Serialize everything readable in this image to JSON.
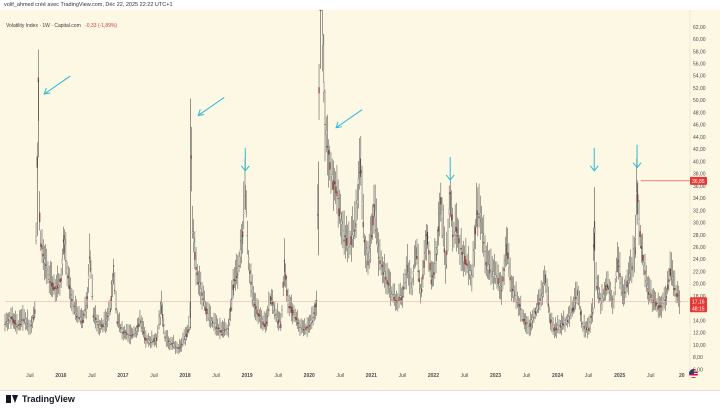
{
  "header": {
    "caption": "volif_ahmed créé avec TradingView.com, Déc 22, 2025 22:22 UTC+1"
  },
  "legend": {
    "symbol": "Volatility Index · 1W · Capital.com",
    "change": "-0,33 (-1,89%)"
  },
  "footer": {
    "brand": "TradingView"
  },
  "chart_data": {
    "type": "line",
    "y_ticks": [
      "2,00",
      "4,00",
      "6,00",
      "8,00",
      "10,00",
      "12,00",
      "14,00",
      "16,00",
      "18,00",
      "20,00",
      "22,00",
      "24,00",
      "26,00",
      "28,00",
      "30,00",
      "32,00",
      "34,00",
      "36,00",
      "38,00",
      "40,00",
      "42,00",
      "44,00",
      "46,00",
      "48,00",
      "50,00",
      "52,00",
      "54,00",
      "56,00",
      "58,00",
      "60,00",
      "62,00"
    ],
    "ylim": [
      2,
      62
    ],
    "x_ticks": [
      {
        "t": 2015.5,
        "label": "Juil"
      },
      {
        "t": 2016.0,
        "label": "2016"
      },
      {
        "t": 2016.5,
        "label": "Juil"
      },
      {
        "t": 2017.0,
        "label": "2017"
      },
      {
        "t": 2017.5,
        "label": "Juil"
      },
      {
        "t": 2018.0,
        "label": "2018"
      },
      {
        "t": 2018.5,
        "label": "Juil"
      },
      {
        "t": 2019.0,
        "label": "2019"
      },
      {
        "t": 2019.5,
        "label": "Juil"
      },
      {
        "t": 2020.0,
        "label": "2020"
      },
      {
        "t": 2020.5,
        "label": "Juil"
      },
      {
        "t": 2021.0,
        "label": "2021"
      },
      {
        "t": 2021.5,
        "label": "Juil"
      },
      {
        "t": 2022.0,
        "label": "2022"
      },
      {
        "t": 2022.5,
        "label": "Juil"
      },
      {
        "t": 2023.0,
        "label": "2023"
      },
      {
        "t": 2023.5,
        "label": "Juil"
      },
      {
        "t": 2024.0,
        "label": "2024"
      },
      {
        "t": 2024.5,
        "label": "Juil"
      },
      {
        "t": 2025.0,
        "label": "2025"
      },
      {
        "t": 2025.5,
        "label": "Juil"
      },
      {
        "t": 2026.0,
        "label": "20"
      }
    ],
    "xlim": [
      2015.1,
      2026.1
    ],
    "series": [
      {
        "values": [
          [
            2015.1,
            13.5
          ],
          [
            2015.2,
            14.5
          ],
          [
            2015.3,
            13.0
          ],
          [
            2015.4,
            14.2
          ],
          [
            2015.5,
            13.0
          ],
          [
            2015.58,
            15.0
          ],
          [
            2015.62,
            40.7
          ],
          [
            2015.64,
            53.3
          ],
          [
            2015.66,
            28.0
          ],
          [
            2015.72,
            24.0
          ],
          [
            2015.8,
            21.0
          ],
          [
            2015.9,
            19.0
          ],
          [
            2016.0,
            20.5
          ],
          [
            2016.05,
            28.0
          ],
          [
            2016.1,
            22.0
          ],
          [
            2016.18,
            17.0
          ],
          [
            2016.25,
            15.0
          ],
          [
            2016.35,
            14.0
          ],
          [
            2016.42,
            16.5
          ],
          [
            2016.47,
            25.5
          ],
          [
            2016.52,
            15.0
          ],
          [
            2016.62,
            13.0
          ],
          [
            2016.72,
            13.5
          ],
          [
            2016.8,
            16.0
          ],
          [
            2016.85,
            22.5
          ],
          [
            2016.9,
            14.0
          ],
          [
            2017.0,
            12.0
          ],
          [
            2017.1,
            11.5
          ],
          [
            2017.2,
            12.0
          ],
          [
            2017.28,
            14.0
          ],
          [
            2017.35,
            11.0
          ],
          [
            2017.45,
            10.5
          ],
          [
            2017.55,
            11.0
          ],
          [
            2017.62,
            16.5
          ],
          [
            2017.68,
            11.0
          ],
          [
            2017.8,
            10.0
          ],
          [
            2017.9,
            9.5
          ],
          [
            2018.0,
            11.0
          ],
          [
            2018.08,
            13.0
          ],
          [
            2018.09,
            50.3
          ],
          [
            2018.11,
            30.0
          ],
          [
            2018.18,
            22.0
          ],
          [
            2018.3,
            17.0
          ],
          [
            2018.4,
            14.0
          ],
          [
            2018.5,
            13.0
          ],
          [
            2018.6,
            12.0
          ],
          [
            2018.7,
            12.5
          ],
          [
            2018.78,
            20.0
          ],
          [
            2018.85,
            22.0
          ],
          [
            2018.93,
            28.0
          ],
          [
            2018.97,
            36.2
          ],
          [
            2019.02,
            24.0
          ],
          [
            2019.1,
            17.0
          ],
          [
            2019.2,
            14.5
          ],
          [
            2019.3,
            13.0
          ],
          [
            2019.38,
            18.0
          ],
          [
            2019.45,
            15.0
          ],
          [
            2019.55,
            13.0
          ],
          [
            2019.6,
            24.0
          ],
          [
            2019.65,
            17.0
          ],
          [
            2019.75,
            15.0
          ],
          [
            2019.85,
            13.0
          ],
          [
            2019.95,
            12.5
          ],
          [
            2020.05,
            14.0
          ],
          [
            2020.12,
            17.0
          ],
          [
            2020.15,
            40.0
          ],
          [
            2020.18,
            85.5
          ],
          [
            2020.21,
            63.0
          ],
          [
            2020.25,
            46.0
          ],
          [
            2020.35,
            38.0
          ],
          [
            2020.45,
            34.0
          ],
          [
            2020.55,
            28.0
          ],
          [
            2020.65,
            26.0
          ],
          [
            2020.75,
            30.0
          ],
          [
            2020.82,
            40.5
          ],
          [
            2020.88,
            27.0
          ],
          [
            2020.95,
            23.0
          ],
          [
            2021.05,
            33.0
          ],
          [
            2021.12,
            24.0
          ],
          [
            2021.2,
            22.0
          ],
          [
            2021.3,
            19.0
          ],
          [
            2021.4,
            17.0
          ],
          [
            2021.5,
            18.0
          ],
          [
            2021.58,
            23.0
          ],
          [
            2021.65,
            19.0
          ],
          [
            2021.72,
            26.0
          ],
          [
            2021.8,
            18.0
          ],
          [
            2021.9,
            28.5
          ],
          [
            2021.97,
            20.0
          ],
          [
            2022.05,
            25.0
          ],
          [
            2022.12,
            34.0
          ],
          [
            2022.2,
            22.0
          ],
          [
            2022.27,
            34.5
          ],
          [
            2022.32,
            27.0
          ],
          [
            2022.38,
            29.0
          ],
          [
            2022.45,
            25.0
          ],
          [
            2022.55,
            23.0
          ],
          [
            2022.62,
            21.0
          ],
          [
            2022.7,
            32.0
          ],
          [
            2022.78,
            30.0
          ],
          [
            2022.85,
            23.0
          ],
          [
            2022.93,
            22.0
          ],
          [
            2023.0,
            21.5
          ],
          [
            2023.1,
            19.0
          ],
          [
            2023.18,
            26.5
          ],
          [
            2023.25,
            19.0
          ],
          [
            2023.35,
            17.5
          ],
          [
            2023.45,
            14.0
          ],
          [
            2023.55,
            13.0
          ],
          [
            2023.65,
            15.5
          ],
          [
            2023.75,
            18.0
          ],
          [
            2023.8,
            21.5
          ],
          [
            2023.88,
            14.0
          ],
          [
            2023.95,
            12.5
          ],
          [
            2024.05,
            13.0
          ],
          [
            2024.15,
            14.0
          ],
          [
            2024.25,
            16.0
          ],
          [
            2024.32,
            19.0
          ],
          [
            2024.4,
            13.0
          ],
          [
            2024.5,
            12.5
          ],
          [
            2024.57,
            16.0
          ],
          [
            2024.59,
            35.8
          ],
          [
            2024.61,
            21.0
          ],
          [
            2024.7,
            17.0
          ],
          [
            2024.8,
            20.0
          ],
          [
            2024.9,
            16.5
          ],
          [
            2024.97,
            24.0
          ],
          [
            2025.05,
            18.0
          ],
          [
            2025.12,
            20.0
          ],
          [
            2025.2,
            23.0
          ],
          [
            2025.25,
            26.0
          ],
          [
            2025.28,
            37.0
          ],
          [
            2025.31,
            30.0
          ],
          [
            2025.36,
            25.0
          ],
          [
            2025.45,
            19.0
          ],
          [
            2025.55,
            17.0
          ],
          [
            2025.65,
            16.0
          ],
          [
            2025.75,
            18.0
          ],
          [
            2025.82,
            22.5
          ],
          [
            2025.88,
            19.0
          ],
          [
            2025.95,
            17.7
          ],
          [
            2025.97,
            17.16
          ]
        ]
      }
    ],
    "price_labels": {
      "marked_level": {
        "value": 36.85,
        "label": "36,85"
      },
      "last_price": {
        "value": 17.16,
        "label": "17,16"
      },
      "countdown": {
        "label": "48:15"
      }
    },
    "annotations": [
      {
        "type": "arrow-diagonal",
        "t": 2015.7,
        "y": 53.0
      },
      {
        "type": "arrow-diagonal",
        "t": 2018.18,
        "y": 49.5
      },
      {
        "type": "arrow-down",
        "t": 2018.97,
        "y": 38.0
      },
      {
        "type": "arrow-diagonal",
        "t": 2020.4,
        "y": 47.5
      },
      {
        "type": "arrow-down",
        "t": 2022.27,
        "y": 36.5
      },
      {
        "type": "arrow-down",
        "t": 2024.59,
        "y": 38.0
      },
      {
        "type": "arrow-down",
        "t": 2025.28,
        "y": 38.5
      }
    ],
    "colors": {
      "background": "#fdf8e4",
      "series": "#2b2b2b",
      "annotation_arrow": "#31b8d4",
      "marked_level": "#e53935",
      "last_price_line": "#f2a0a0"
    },
    "grid": false
  }
}
